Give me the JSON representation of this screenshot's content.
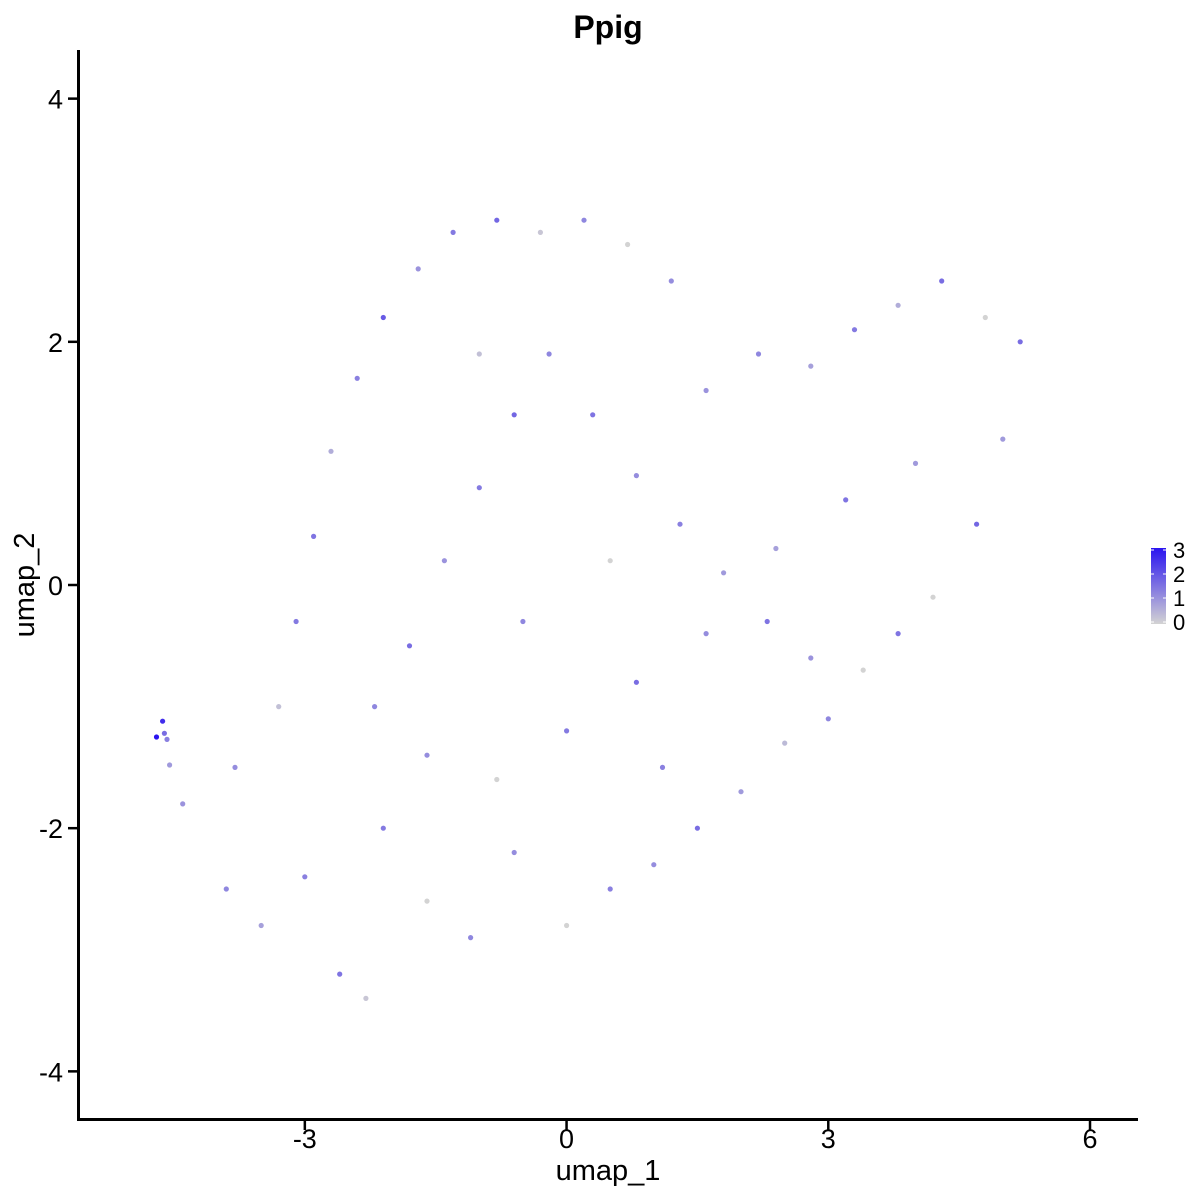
{
  "chart_data": {
    "type": "scatter",
    "title": "Ppig",
    "xlabel": "umap_1",
    "ylabel": "umap_2",
    "xlim": [
      -5.6,
      6.55
    ],
    "ylim": [
      -4.4,
      4.4
    ],
    "x_ticks": [
      -3,
      0,
      3,
      6
    ],
    "x_tick_labels": [
      "-3",
      "0",
      "3",
      "6"
    ],
    "y_ticks": [
      -4,
      -2,
      0,
      2,
      4
    ],
    "y_tick_labels": [
      "-4",
      "-2",
      "0",
      "2",
      "4"
    ],
    "grid": false,
    "legend_placement": "right",
    "color_scale": {
      "low_color": "#d3d3d3",
      "high_color": "#2a14f0",
      "min": 0,
      "max": 3,
      "ticks": [
        0,
        1,
        2,
        3
      ],
      "tick_labels": [
        "0",
        "1",
        "2",
        "3"
      ]
    },
    "points": [
      [
        -4.7,
        -1.25,
        3.0
      ],
      [
        -4.63,
        -1.12,
        2.6
      ],
      [
        -4.61,
        -1.22,
        1.6
      ],
      [
        -4.58,
        -1.27,
        1.3
      ],
      [
        -4.55,
        -1.48,
        0.9
      ],
      [
        -4.4,
        -1.8,
        1.0
      ],
      [
        -3.9,
        -2.5,
        1.2
      ],
      [
        -3.5,
        -2.8,
        0.8
      ],
      [
        -3.0,
        -2.4,
        1.3
      ],
      [
        -2.6,
        -3.2,
        1.5
      ],
      [
        -2.3,
        -3.4,
        0.2
      ],
      [
        -2.1,
        -2.0,
        1.4
      ],
      [
        -1.6,
        -2.6,
        0.0
      ],
      [
        -1.1,
        -2.9,
        1.2
      ],
      [
        -0.6,
        -2.2,
        1.1
      ],
      [
        0.0,
        -2.8,
        0.0
      ],
      [
        0.5,
        -2.5,
        1.3
      ],
      [
        1.0,
        -2.3,
        1.1
      ],
      [
        1.5,
        -2.0,
        1.6
      ],
      [
        2.0,
        -1.7,
        0.9
      ],
      [
        2.5,
        -1.3,
        0.4
      ],
      [
        3.0,
        -1.1,
        1.2
      ],
      [
        3.4,
        -0.7,
        0.0
      ],
      [
        -3.8,
        -1.5,
        1.1
      ],
      [
        -3.3,
        -1.0,
        0.3
      ],
      [
        -3.1,
        -0.3,
        1.4
      ],
      [
        -2.9,
        0.4,
        1.5
      ],
      [
        -2.7,
        1.1,
        0.6
      ],
      [
        -2.4,
        1.7,
        1.3
      ],
      [
        -2.1,
        2.2,
        1.9
      ],
      [
        -1.7,
        2.6,
        1.0
      ],
      [
        -1.3,
        2.9,
        1.4
      ],
      [
        -0.8,
        3.0,
        1.7
      ],
      [
        -0.3,
        2.9,
        0.2
      ],
      [
        0.2,
        3.0,
        1.2
      ],
      [
        0.7,
        2.8,
        0.0
      ],
      [
        1.2,
        2.5,
        1.1
      ],
      [
        -2.2,
        -1.0,
        1.2
      ],
      [
        -1.8,
        -0.5,
        1.6
      ],
      [
        -1.4,
        0.2,
        1.0
      ],
      [
        -1.0,
        0.8,
        1.4
      ],
      [
        -0.6,
        1.4,
        1.7
      ],
      [
        -0.2,
        1.9,
        1.2
      ],
      [
        0.3,
        1.4,
        1.5
      ],
      [
        0.8,
        0.9,
        1.1
      ],
      [
        1.3,
        0.5,
        1.3
      ],
      [
        1.8,
        0.1,
        0.9
      ],
      [
        2.3,
        -0.3,
        1.5
      ],
      [
        2.8,
        -0.6,
        1.0
      ],
      [
        1.6,
        1.6,
        1.0
      ],
      [
        2.2,
        1.9,
        1.2
      ],
      [
        2.8,
        1.8,
        0.8
      ],
      [
        3.3,
        2.1,
        1.4
      ],
      [
        3.8,
        2.3,
        0.6
      ],
      [
        4.3,
        2.5,
        1.6
      ],
      [
        4.8,
        2.2,
        0.0
      ],
      [
        5.2,
        2.0,
        1.6
      ],
      [
        5.0,
        1.2,
        0.9
      ],
      [
        4.7,
        0.5,
        1.7
      ],
      [
        4.2,
        -0.1,
        0.0
      ],
      [
        3.8,
        -0.4,
        1.5
      ],
      [
        -1.6,
        -1.4,
        1.1
      ],
      [
        -0.8,
        -1.6,
        0.0
      ],
      [
        0.0,
        -1.2,
        1.4
      ],
      [
        0.8,
        -0.8,
        1.6
      ],
      [
        1.6,
        -0.4,
        1.1
      ],
      [
        2.4,
        0.3,
        0.8
      ],
      [
        3.2,
        0.7,
        1.5
      ],
      [
        4.0,
        1.0,
        0.9
      ],
      [
        0.5,
        0.2,
        0.0
      ],
      [
        -0.5,
        -0.3,
        1.2
      ],
      [
        1.1,
        -1.5,
        1.3
      ],
      [
        -1.0,
        1.9,
        0.3
      ]
    ]
  }
}
